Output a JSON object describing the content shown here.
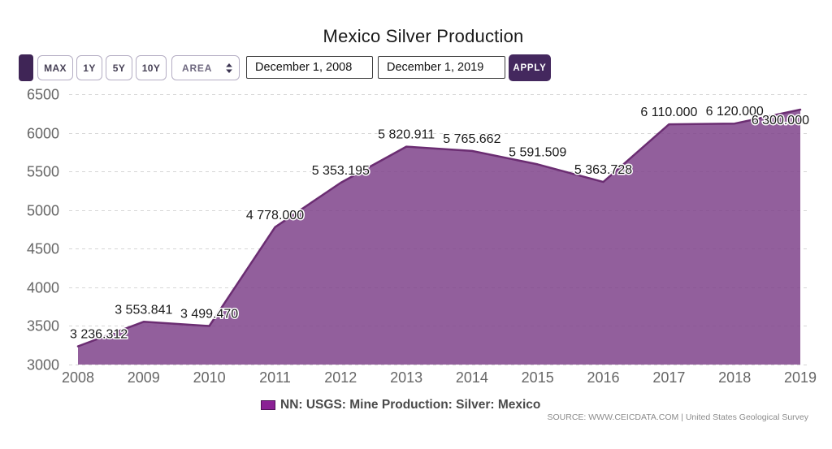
{
  "title": "Mexico Silver Production",
  "toolbar": {
    "range_buttons": [
      "MAX",
      "1Y",
      "5Y",
      "10Y"
    ],
    "chart_type_select": {
      "value": "AREA"
    },
    "date_from": "December 1, 2008",
    "date_to": "December 1, 2019",
    "apply_label": "APPLY"
  },
  "legend": {
    "label": "NN: USGS: Mine Production: Silver: Mexico",
    "swatch_color": "#8a2094"
  },
  "source_note": "SOURCE: WWW.CEICDATA.COM | United States Geological Survey",
  "colors": {
    "accent_dark": "#44285e",
    "area_fill": "rgba(127,67,139,0.85)",
    "area_line": "#6b2d72",
    "grid": "#d6d6d6",
    "axis_text": "#666666"
  },
  "chart_data": {
    "type": "area",
    "title": "Mexico Silver Production",
    "x": [
      2008,
      2009,
      2010,
      2011,
      2012,
      2013,
      2014,
      2015,
      2016,
      2017,
      2018,
      2019
    ],
    "series": [
      {
        "name": "NN: USGS: Mine Production: Silver: Mexico",
        "values": [
          3236.312,
          3553.841,
          3499.47,
          4778.0,
          5353.195,
          5820.911,
          5765.662,
          5591.509,
          5363.728,
          6110.0,
          6120.0,
          6300.0
        ]
      }
    ],
    "xlabel": "",
    "ylabel": "",
    "ylim": [
      3000,
      6500
    ],
    "y_tick_step": 500,
    "grid": "horizontal-dashed",
    "legend_position": "bottom-center",
    "data_labels": true,
    "data_label_decimals": 3,
    "thousands_separator": " "
  }
}
